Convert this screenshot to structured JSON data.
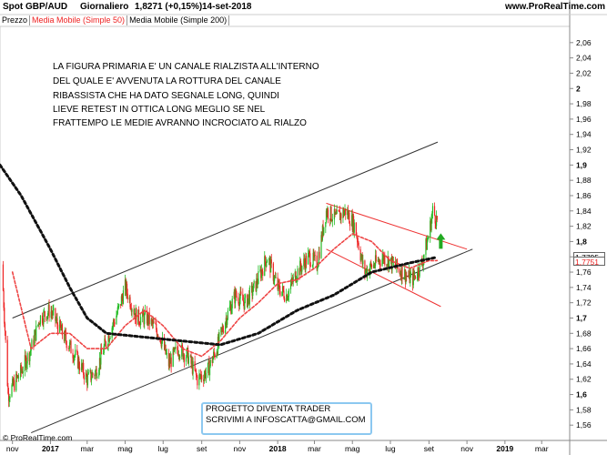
{
  "header": {
    "instrument": "Spot GBP/AUD",
    "period": "Giornaliero",
    "quote": "1,8271 (+0,15%)",
    "date": "14-set-2018",
    "site": "www.ProRealTime.com"
  },
  "legend": [
    {
      "label": "Prezzo",
      "color": "#000000"
    },
    {
      "label": "Media Mobile (Simple 50)",
      "color": "#ee2222"
    },
    {
      "label": "Media Mobile (Simple 200)",
      "color": "#000000"
    }
  ],
  "annotation": {
    "lines": [
      "LA FIGURA PRIMARIA E' UN CANALE RIALZISTA ALL'INTERNO",
      "DEL QUALE E' AVVENUTA LA ROTTURA DEL CANALE",
      "RIBASSISTA CHE HA DATO SEGNALE LONG, QUINDI",
      "LIEVE RETEST IN OTTICA LONG MEGLIO SE NEL",
      "FRATTEMPO LE MEDIE AVRANNO INCROCIATO AL RIALZO"
    ]
  },
  "box": {
    "line1": "PROGETTO DIVENTA TRADER",
    "line2": "SCRIVIMI A INFOSCATTA@GMAIL.COM",
    "border_color": "#8cc8f0"
  },
  "footer": "© ProRealTime.com",
  "colors": {
    "up": "#22bb22",
    "down": "#ee2222",
    "ma50": "#ee4444",
    "ma200": "#111111",
    "channel": "#333333",
    "down_channel": "#ee3333",
    "arrow": "#22aa22"
  },
  "chart_data": {
    "type": "candlestick",
    "y_range": [
      1.54,
      2.08
    ],
    "y_ticks": [
      "2,06",
      "2,04",
      "2,02",
      "2",
      "1,98",
      "1,96",
      "1,94",
      "1,92",
      "1,9",
      "1,88",
      "1,86",
      "1,84",
      "1,82",
      "1,8",
      "1,78",
      "1,76",
      "1,74",
      "1,72",
      "1,7",
      "1,68",
      "1,66",
      "1,64",
      "1,62",
      "1,6",
      "1,58",
      "1,56"
    ],
    "y_tick_values": [
      2.06,
      2.04,
      2.02,
      2.0,
      1.98,
      1.96,
      1.94,
      1.92,
      1.9,
      1.88,
      1.86,
      1.84,
      1.82,
      1.8,
      1.78,
      1.76,
      1.74,
      1.72,
      1.7,
      1.68,
      1.66,
      1.64,
      1.62,
      1.6,
      1.58,
      1.56
    ],
    "bold_ticks": [
      "2",
      "1,9",
      "1,8",
      "1,7",
      "1,6"
    ],
    "x_range": [
      "2016-10-12",
      "2019-04-15"
    ],
    "x_ticks": [
      {
        "label": "nov",
        "date": "2016-11-01",
        "bold": false
      },
      {
        "label": "2017",
        "date": "2017-01-01",
        "bold": true
      },
      {
        "label": "mar",
        "date": "2017-03-01",
        "bold": false
      },
      {
        "label": "mag",
        "date": "2017-05-01",
        "bold": false
      },
      {
        "label": "lug",
        "date": "2017-07-01",
        "bold": false
      },
      {
        "label": "set",
        "date": "2017-09-01",
        "bold": false
      },
      {
        "label": "nov",
        "date": "2017-11-01",
        "bold": false
      },
      {
        "label": "2018",
        "date": "2018-01-01",
        "bold": true
      },
      {
        "label": "mar",
        "date": "2018-03-01",
        "bold": false
      },
      {
        "label": "mag",
        "date": "2018-05-01",
        "bold": false
      },
      {
        "label": "lug",
        "date": "2018-07-01",
        "bold": false
      },
      {
        "label": "set",
        "date": "2018-09-01",
        "bold": false
      },
      {
        "label": "nov",
        "date": "2018-11-01",
        "bold": false
      },
      {
        "label": "2019",
        "date": "2019-01-01",
        "bold": true
      },
      {
        "label": "mar",
        "date": "2019-03-01",
        "bold": false
      }
    ],
    "price_path": [
      [
        "2016-10-15",
        1.77
      ],
      [
        "2016-10-25",
        1.6
      ],
      [
        "2016-11-15",
        1.63
      ],
      [
        "2016-12-01",
        1.66
      ],
      [
        "2016-12-15",
        1.7
      ],
      [
        "2017-01-01",
        1.71
      ],
      [
        "2017-01-20",
        1.68
      ],
      [
        "2017-02-10",
        1.65
      ],
      [
        "2017-03-01",
        1.62
      ],
      [
        "2017-03-15",
        1.63
      ],
      [
        "2017-04-01",
        1.67
      ],
      [
        "2017-04-20",
        1.71
      ],
      [
        "2017-05-01",
        1.74
      ],
      [
        "2017-05-20",
        1.7
      ],
      [
        "2017-06-05",
        1.7
      ],
      [
        "2017-06-25",
        1.68
      ],
      [
        "2017-07-10",
        1.64
      ],
      [
        "2017-07-25",
        1.66
      ],
      [
        "2017-08-10",
        1.65
      ],
      [
        "2017-08-25",
        1.62
      ],
      [
        "2017-09-10",
        1.63
      ],
      [
        "2017-09-25",
        1.66
      ],
      [
        "2017-10-10",
        1.7
      ],
      [
        "2017-10-25",
        1.73
      ],
      [
        "2017-11-10",
        1.72
      ],
      [
        "2017-11-25",
        1.74
      ],
      [
        "2017-12-15",
        1.78
      ],
      [
        "2018-01-01",
        1.74
      ],
      [
        "2018-01-15",
        1.73
      ],
      [
        "2018-02-01",
        1.76
      ],
      [
        "2018-02-20",
        1.78
      ],
      [
        "2018-03-05",
        1.77
      ],
      [
        "2018-03-20",
        1.84
      ],
      [
        "2018-04-05",
        1.83
      ],
      [
        "2018-04-20",
        1.84
      ],
      [
        "2018-05-05",
        1.82
      ],
      [
        "2018-05-20",
        1.76
      ],
      [
        "2018-06-05",
        1.77
      ],
      [
        "2018-06-20",
        1.78
      ],
      [
        "2018-07-05",
        1.77
      ],
      [
        "2018-07-20",
        1.76
      ],
      [
        "2018-08-05",
        1.75
      ],
      [
        "2018-08-20",
        1.77
      ],
      [
        "2018-09-01",
        1.81
      ],
      [
        "2018-09-07",
        1.84
      ],
      [
        "2018-09-14",
        1.827
      ]
    ],
    "ma50_path": [
      [
        "2016-11-01",
        1.76
      ],
      [
        "2016-12-01",
        1.66
      ],
      [
        "2017-01-01",
        1.68
      ],
      [
        "2017-02-01",
        1.68
      ],
      [
        "2017-03-01",
        1.66
      ],
      [
        "2017-04-01",
        1.66
      ],
      [
        "2017-05-01",
        1.69
      ],
      [
        "2017-06-01",
        1.71
      ],
      [
        "2017-07-01",
        1.69
      ],
      [
        "2017-08-01",
        1.66
      ],
      [
        "2017-09-01",
        1.65
      ],
      [
        "2017-10-01",
        1.67
      ],
      [
        "2017-11-01",
        1.7
      ],
      [
        "2017-12-01",
        1.72
      ],
      [
        "2018-01-01",
        1.745
      ],
      [
        "2018-02-01",
        1.75
      ],
      [
        "2018-03-01",
        1.765
      ],
      [
        "2018-04-01",
        1.79
      ],
      [
        "2018-05-01",
        1.81
      ],
      [
        "2018-06-01",
        1.8
      ],
      [
        "2018-07-01",
        1.775
      ],
      [
        "2018-08-01",
        1.765
      ],
      [
        "2018-09-01",
        1.775
      ],
      [
        "2018-09-14",
        1.7751
      ]
    ],
    "ma200_path": [
      [
        "2016-10-12",
        1.9
      ],
      [
        "2016-11-15",
        1.86
      ],
      [
        "2017-01-01",
        1.79
      ],
      [
        "2017-02-01",
        1.74
      ],
      [
        "2017-03-01",
        1.7
      ],
      [
        "2017-04-01",
        1.68
      ],
      [
        "2017-06-01",
        1.675
      ],
      [
        "2017-08-01",
        1.67
      ],
      [
        "2017-10-01",
        1.665
      ],
      [
        "2017-12-01",
        1.68
      ],
      [
        "2018-02-01",
        1.71
      ],
      [
        "2018-04-01",
        1.73
      ],
      [
        "2018-06-01",
        1.76
      ],
      [
        "2018-08-01",
        1.772
      ],
      [
        "2018-09-14",
        1.7795
      ]
    ],
    "channel_upper": [
      [
        "2016-11-01",
        1.7
      ],
      [
        "2018-09-15",
        1.93
      ]
    ],
    "channel_lower": [
      [
        "2016-12-01",
        1.55
      ],
      [
        "2018-11-10",
        1.79
      ]
    ],
    "down_channel_upper": [
      [
        "2018-03-20",
        1.85
      ],
      [
        "2018-11-01",
        1.79
      ]
    ],
    "down_channel_lower": [
      [
        "2018-03-20",
        1.79
      ],
      [
        "2018-09-20",
        1.715
      ]
    ],
    "price_labels": [
      {
        "text": "1,7795",
        "value": 1.7795
      },
      {
        "text": "1,7751",
        "value": 1.7751,
        "color": "#ee2222"
      }
    ],
    "arrow_at": [
      "2018-09-20",
      1.8
    ]
  }
}
